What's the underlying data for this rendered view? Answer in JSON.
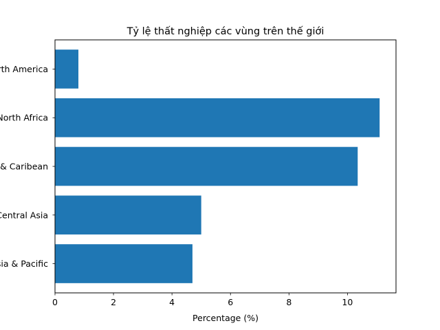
{
  "chart_data": {
    "type": "bar",
    "orientation": "horizontal",
    "title": "Tỷ lệ thất nghiệp các vùng trên thế giới",
    "xlabel": "Percentage (%)",
    "ylabel": "",
    "categories": [
      "East Asia & Pacific",
      "Europe & Central Asia",
      "Latin America & Caribean",
      "Middle East & North Africa",
      "North America"
    ],
    "values": [
      4.7,
      5.0,
      10.35,
      11.1,
      0.8
    ],
    "xlim": [
      0,
      11.66
    ],
    "xticks": [
      0,
      2,
      4,
      6,
      8,
      10
    ],
    "bar_color": "#1f77b4",
    "grid": false,
    "legend": "none"
  }
}
